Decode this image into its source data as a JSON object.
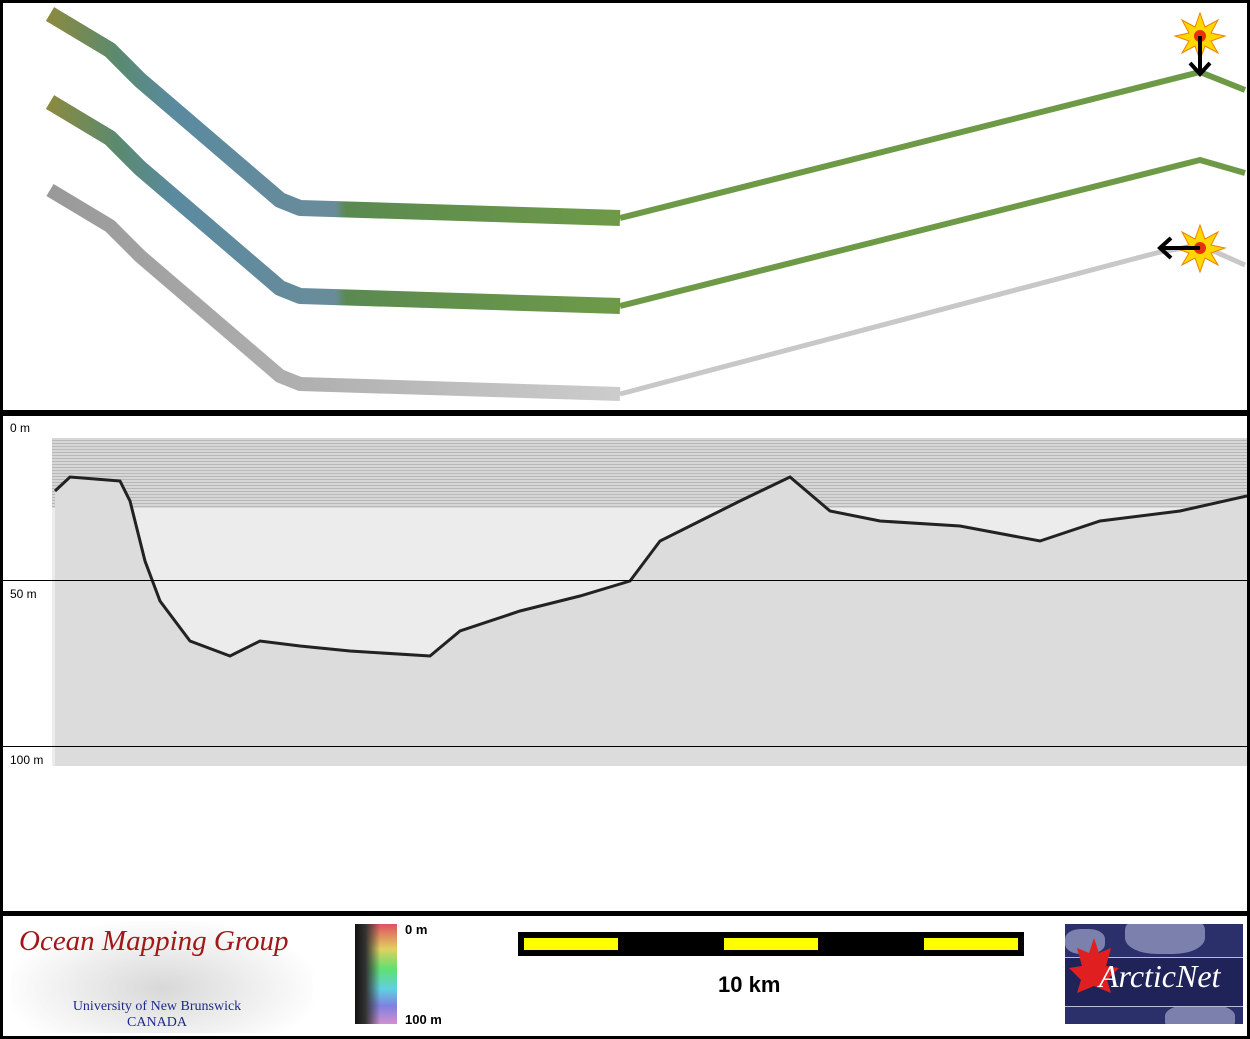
{
  "profile": {
    "depth_labels": [
      "0 m",
      "50 m",
      "100 m"
    ]
  },
  "legend": {
    "oml_title": "Ocean Mapping Group",
    "oml_line1": "University of New Brunswick",
    "oml_line2": "CANADA",
    "colorbar_top": "0 m",
    "colorbar_bottom": "100 m",
    "scale_label": "10 km",
    "arcticnet": "ArcticNet"
  },
  "colors": {
    "scale_bar": "#ffff00",
    "oml_red": "#a01818",
    "arcticnet_navy": "#2b2f6a"
  }
}
